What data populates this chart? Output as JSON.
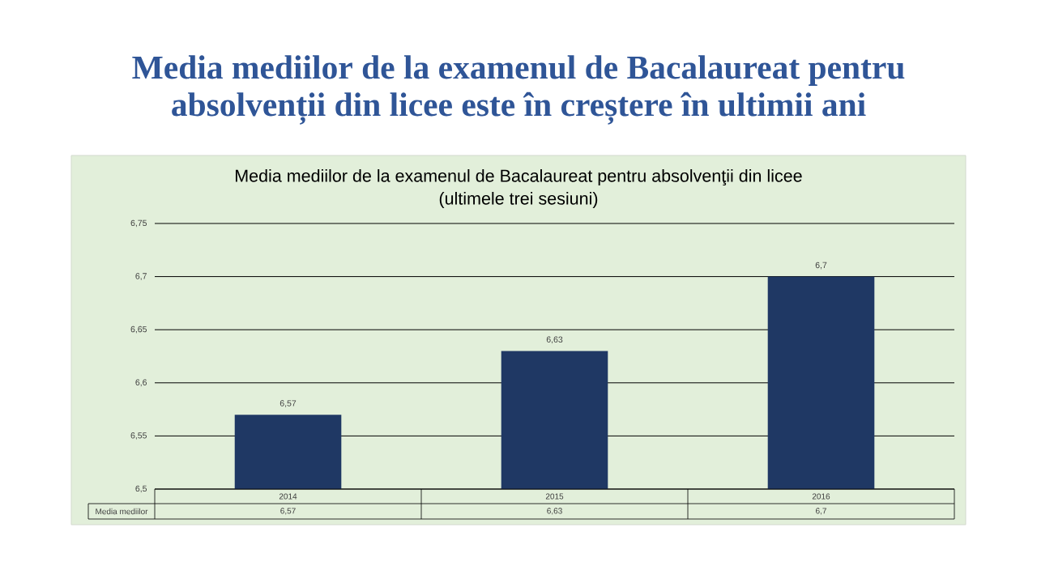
{
  "chart_data": {
    "type": "bar",
    "title": "Media mediilor de la examenul de Bacalaureat pentru absolvenții din licee este în creștere în ultimii ani",
    "subtitle": "Media mediilor de la examenul de Bacalaureat pentru absolvenţii din licee (ultimele trei sesiuni)",
    "categories": [
      "2014",
      "2015",
      "2016"
    ],
    "series": [
      {
        "name": "Media mediilor",
        "color": "#1f3864",
        "values": [
          6.57,
          6.63,
          6.7
        ],
        "value_labels": [
          "6,57",
          "6,63",
          "6,7"
        ]
      }
    ],
    "ylim": [
      6.5,
      6.75
    ],
    "yticks": [
      {
        "value": 6.5,
        "label": "6,5"
      },
      {
        "value": 6.55,
        "label": "6,55"
      },
      {
        "value": 6.6,
        "label": "6,6"
      },
      {
        "value": 6.65,
        "label": "6,65"
      },
      {
        "value": 6.7,
        "label": "6,7"
      },
      {
        "value": 6.75,
        "label": "6,75"
      }
    ],
    "grid": "y"
  }
}
